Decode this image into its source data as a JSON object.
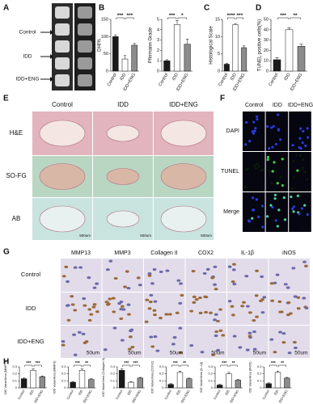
{
  "panel_labels": [
    "A",
    "B",
    "C",
    "D",
    "E",
    "F",
    "G",
    "H"
  ],
  "panel_a": {
    "rows": [
      "Control",
      "IDD",
      "IDD+ENG"
    ]
  },
  "panel_e": {
    "columns": [
      "Control",
      "IDD",
      "IDD+ENG"
    ],
    "rows": [
      "H&E",
      "SO-FG",
      "AB"
    ],
    "scale": "500um"
  },
  "panel_f": {
    "columns": [
      "Control",
      "IDD",
      "IDD+ENG"
    ],
    "rows": [
      "DAPI",
      "TUNEL",
      "Merge"
    ],
    "scale": "25um"
  },
  "panel_g": {
    "columns": [
      "MMP13",
      "MMP3",
      "Collagen II",
      "COX2",
      "IL-1β",
      "iNOS"
    ],
    "rows": [
      "Control",
      "IDD",
      "IDD+ENG"
    ],
    "scale": "50um"
  },
  "chart_data": [
    {
      "type": "bar",
      "ylabel": "DHI%",
      "categories": [
        "Control",
        "IDD",
        "IDD+ENG"
      ],
      "values": [
        100,
        35,
        75
      ],
      "errors": [
        5,
        10,
        5
      ],
      "colors": [
        "#1a1a1a",
        "#ffffff",
        "#8c8c8c"
      ],
      "ylim": [
        0,
        150
      ],
      "yticks": [
        0,
        50,
        100,
        150
      ],
      "annotations": [
        "***",
        "***"
      ]
    },
    {
      "type": "bar",
      "ylabel": "Pfirrmann Grade",
      "categories": [
        "Control",
        "IDD",
        "IDD+ENG"
      ],
      "values": [
        1,
        4.5,
        2.6
      ],
      "errors": [
        0.1,
        0.4,
        0.5
      ],
      "colors": [
        "#1a1a1a",
        "#ffffff",
        "#8c8c8c"
      ],
      "ylim": [
        0,
        5
      ],
      "yticks": [
        0,
        1,
        2,
        3,
        4,
        5
      ],
      "annotations": [
        "***",
        "*"
      ]
    },
    {
      "type": "bar",
      "ylabel": "Histological Scale",
      "categories": [
        "Control",
        "IDD",
        "IDD+ENG"
      ],
      "values": [
        2,
        13.5,
        6.8
      ],
      "errors": [
        0.3,
        0.3,
        0.5
      ],
      "colors": [
        "#1a1a1a",
        "#ffffff",
        "#8c8c8c"
      ],
      "ylim": [
        0,
        15
      ],
      "yticks": [
        0,
        5,
        10,
        15
      ],
      "annotations": [
        "****",
        "***"
      ]
    },
    {
      "type": "bar",
      "ylabel": "TUNEL positive cells(%)",
      "categories": [
        "Control",
        "IDD",
        "IDD+ENG"
      ],
      "values": [
        11,
        40,
        24
      ],
      "errors": [
        2,
        2,
        2
      ],
      "colors": [
        "#1a1a1a",
        "#ffffff",
        "#8c8c8c"
      ],
      "ylim": [
        0,
        50
      ],
      "yticks": [
        0,
        10,
        20,
        30,
        40,
        50
      ],
      "annotations": [
        "***",
        "**"
      ]
    },
    {
      "type": "bar",
      "ylabel": "IOD Value/Area (MMP13)",
      "categories": [
        "Control",
        "IDD",
        "IDD+ENG"
      ],
      "values": [
        0.13,
        0.25,
        0.16
      ],
      "errors": [
        0.01,
        0.02,
        0.01
      ],
      "colors": [
        "#1a1a1a",
        "#ffffff",
        "#8c8c8c"
      ],
      "ylim": [
        0,
        0.3
      ],
      "yticks": [
        0,
        0.1,
        0.2,
        0.3
      ],
      "annotations": [
        "***",
        "***"
      ]
    },
    {
      "type": "bar",
      "ylabel": "IOD Value/Area (MMP3)",
      "categories": [
        "Control",
        "IDD",
        "IDD+ENG"
      ],
      "values": [
        0.08,
        0.25,
        0.12
      ],
      "errors": [
        0.01,
        0.02,
        0.01
      ],
      "colors": [
        "#1a1a1a",
        "#ffffff",
        "#8c8c8c"
      ],
      "ylim": [
        0,
        0.3
      ],
      "yticks": [
        0,
        0.1,
        0.2,
        0.3
      ],
      "annotations": [
        "***",
        "**"
      ]
    },
    {
      "type": "bar",
      "ylabel": "IOD Value/Area (Collagen II)",
      "categories": [
        "Control",
        "IDD",
        "IDD+ENG"
      ],
      "values": [
        0.25,
        0.08,
        0.14
      ],
      "errors": [
        0.02,
        0.01,
        0.01
      ],
      "colors": [
        "#1a1a1a",
        "#ffffff",
        "#8c8c8c"
      ],
      "ylim": [
        0,
        0.3
      ],
      "yticks": [
        0,
        0.1,
        0.2,
        0.3
      ],
      "annotations": [
        "***",
        "***"
      ]
    },
    {
      "type": "bar",
      "ylabel": "IOD Value/Area (COX2)",
      "categories": [
        "Control",
        "IDD",
        "IDD+ENG"
      ],
      "values": [
        0.05,
        0.22,
        0.13
      ],
      "errors": [
        0.01,
        0.02,
        0.01
      ],
      "colors": [
        "#1a1a1a",
        "#ffffff",
        "#8c8c8c"
      ],
      "ylim": [
        0,
        0.3
      ],
      "yticks": [
        0,
        0.1,
        0.2,
        0.3
      ],
      "annotations": [
        "***",
        "**"
      ]
    },
    {
      "type": "bar",
      "ylabel": "IOD Value/Area (IL-1β)",
      "categories": [
        "Control",
        "IDD",
        "IDD+ENG"
      ],
      "values": [
        0.04,
        0.2,
        0.11
      ],
      "errors": [
        0.01,
        0.02,
        0.01
      ],
      "colors": [
        "#1a1a1a",
        "#ffffff",
        "#8c8c8c"
      ],
      "ylim": [
        0,
        0.3
      ],
      "yticks": [
        0,
        0.1,
        0.2,
        0.3
      ],
      "annotations": [
        "***",
        "**"
      ]
    },
    {
      "type": "bar",
      "ylabel": "IOD Value/Area (iNOS)",
      "categories": [
        "Control",
        "IDD",
        "IDD+ENG"
      ],
      "values": [
        0.06,
        0.22,
        0.14
      ],
      "errors": [
        0.01,
        0.02,
        0.01
      ],
      "colors": [
        "#1a1a1a",
        "#ffffff",
        "#8c8c8c"
      ],
      "ylim": [
        0,
        0.3
      ],
      "yticks": [
        0,
        0.1,
        0.2,
        0.3
      ],
      "annotations": [
        "***",
        "**"
      ]
    }
  ]
}
